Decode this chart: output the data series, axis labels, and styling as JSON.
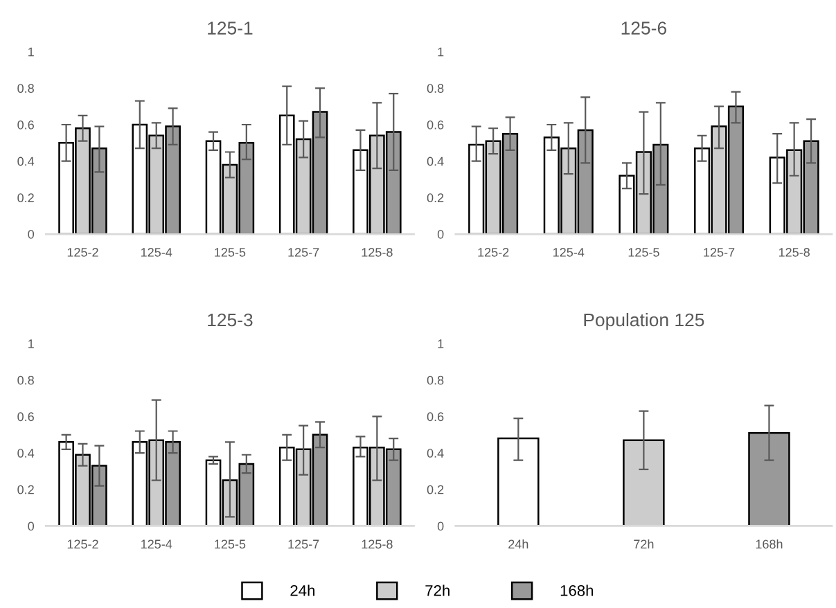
{
  "chart_data": [
    {
      "type": "bar",
      "title": "125-1",
      "categories": [
        "125-2",
        "125-4",
        "125-5",
        "125-7",
        "125-8"
      ],
      "ylim": [
        0,
        1
      ],
      "yticks": [
        0,
        0.2,
        0.4,
        0.6,
        0.8,
        1
      ],
      "grid": false,
      "legend": "bottom",
      "series": [
        {
          "name": "24h",
          "color": "#ffffff",
          "values": [
            0.5,
            0.6,
            0.51,
            0.65,
            0.46
          ],
          "errors": [
            [
              0.4,
              0.6
            ],
            [
              0.47,
              0.73
            ],
            [
              0.46,
              0.56
            ],
            [
              0.49,
              0.81
            ],
            [
              0.35,
              0.57
            ]
          ]
        },
        {
          "name": "72h",
          "color": "#cccccc",
          "values": [
            0.58,
            0.54,
            0.38,
            0.52,
            0.54
          ],
          "errors": [
            [
              0.51,
              0.65
            ],
            [
              0.47,
              0.61
            ],
            [
              0.31,
              0.45
            ],
            [
              0.42,
              0.62
            ],
            [
              0.36,
              0.72
            ]
          ]
        },
        {
          "name": "168h",
          "color": "#999999",
          "values": [
            0.47,
            0.59,
            0.5,
            0.67,
            0.56
          ],
          "errors": [
            [
              0.34,
              0.59
            ],
            [
              0.49,
              0.69
            ],
            [
              0.41,
              0.6
            ],
            [
              0.53,
              0.8
            ],
            [
              0.35,
              0.77
            ]
          ]
        }
      ]
    },
    {
      "type": "bar",
      "title": "125-6",
      "categories": [
        "125-2",
        "125-4",
        "125-5",
        "125-7",
        "125-8"
      ],
      "ylim": [
        0,
        1
      ],
      "yticks": [
        0,
        0.2,
        0.4,
        0.6,
        0.8,
        1
      ],
      "grid": false,
      "series": [
        {
          "color": "#ffffff",
          "values": [
            0.49,
            0.53,
            0.32,
            0.47,
            0.42
          ],
          "errors": [
            [
              0.4,
              0.59
            ],
            [
              0.46,
              0.6
            ],
            [
              0.25,
              0.39
            ],
            [
              0.4,
              0.54
            ],
            [
              0.28,
              0.55
            ]
          ]
        },
        {
          "color": "#cccccc",
          "values": [
            0.51,
            0.47,
            0.45,
            0.59,
            0.46
          ],
          "errors": [
            [
              0.44,
              0.58
            ],
            [
              0.33,
              0.61
            ],
            [
              0.22,
              0.67
            ],
            [
              0.47,
              0.7
            ],
            [
              0.32,
              0.61
            ]
          ]
        },
        {
          "color": "#999999",
          "values": [
            0.55,
            0.57,
            0.49,
            0.7,
            0.51
          ],
          "errors": [
            [
              0.46,
              0.64
            ],
            [
              0.39,
              0.75
            ],
            [
              0.27,
              0.72
            ],
            [
              0.61,
              0.78
            ],
            [
              0.39,
              0.63
            ]
          ]
        }
      ]
    },
    {
      "type": "bar",
      "title": "125-3",
      "categories": [
        "125-2",
        "125-4",
        "125-5",
        "125-7",
        "125-8"
      ],
      "ylim": [
        0,
        1
      ],
      "yticks": [
        0,
        0.2,
        0.4,
        0.6,
        0.8,
        1
      ],
      "grid": false,
      "series": [
        {
          "color": "#ffffff",
          "values": [
            0.46,
            0.46,
            0.36,
            0.43,
            0.43
          ],
          "errors": [
            [
              0.42,
              0.5
            ],
            [
              0.4,
              0.52
            ],
            [
              0.34,
              0.38
            ],
            [
              0.36,
              0.5
            ],
            [
              0.38,
              0.49
            ]
          ]
        },
        {
          "color": "#cccccc",
          "values": [
            0.39,
            0.47,
            0.25,
            0.42,
            0.43
          ],
          "errors": [
            [
              0.33,
              0.45
            ],
            [
              0.25,
              0.69
            ],
            [
              0.05,
              0.46
            ],
            [
              0.28,
              0.55
            ],
            [
              0.25,
              0.6
            ]
          ]
        },
        {
          "color": "#999999",
          "values": [
            0.33,
            0.46,
            0.34,
            0.5,
            0.42
          ],
          "errors": [
            [
              0.22,
              0.44
            ],
            [
              0.4,
              0.52
            ],
            [
              0.29,
              0.39
            ],
            [
              0.43,
              0.57
            ],
            [
              0.36,
              0.48
            ]
          ]
        }
      ]
    },
    {
      "type": "bar",
      "title": "Population 125",
      "categories": [
        "24h",
        "72h",
        "168h"
      ],
      "ylim": [
        0,
        1
      ],
      "yticks": [
        0,
        0.2,
        0.4,
        0.6,
        0.8,
        1
      ],
      "grid": false,
      "values": [
        0.48,
        0.47,
        0.51
      ],
      "colors": [
        "#ffffff",
        "#cccccc",
        "#999999"
      ],
      "errors": [
        [
          0.36,
          0.59
        ],
        [
          0.31,
          0.63
        ],
        [
          0.36,
          0.66
        ]
      ]
    }
  ]
}
